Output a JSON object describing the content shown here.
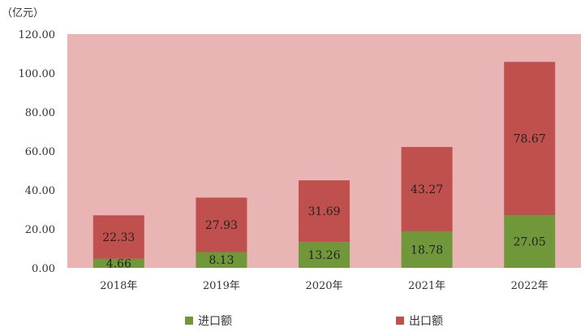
{
  "chart_data": {
    "type": "bar",
    "stacked": true,
    "unit_label": "（亿元）",
    "categories": [
      "2018年",
      "2019年",
      "2020年",
      "2021年",
      "2022年"
    ],
    "series": [
      {
        "name": "进口额",
        "color": "#70983a",
        "values": [
          4.66,
          8.13,
          13.26,
          18.78,
          27.05
        ],
        "labels": [
          "4.66",
          "8.13",
          "13.26",
          "18.78",
          "27.05"
        ]
      },
      {
        "name": "出口额",
        "color": "#c0504d",
        "values": [
          22.33,
          27.93,
          31.69,
          43.27,
          78.67
        ],
        "labels": [
          "22.33",
          "27.93",
          "31.69",
          "43.27",
          "78.67"
        ]
      }
    ],
    "ylim": [
      0,
      120
    ],
    "yticks": [
      {
        "value": 0,
        "label": "0.00"
      },
      {
        "value": 20,
        "label": "20.00"
      },
      {
        "value": 40,
        "label": "40.00"
      },
      {
        "value": 60,
        "label": "60.00"
      },
      {
        "value": 80,
        "label": "80.00"
      },
      {
        "value": 100,
        "label": "100.00"
      },
      {
        "value": 120,
        "label": "120.00"
      }
    ],
    "plot_background": "#e8b4b4",
    "legend_position": "bottom",
    "grid": false
  }
}
